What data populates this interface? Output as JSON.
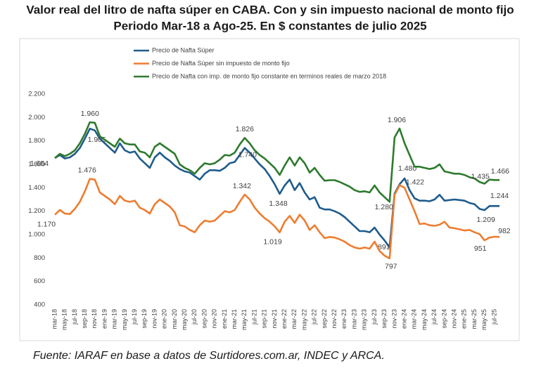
{
  "chart_data": {
    "type": "line",
    "title": "Valor real del litro de nafta súper en CABA. Con y sin impuesto nacional de monto fijo",
    "subtitle": "Periodo Mar-18 a Ago-25. En $ constantes de julio 2025",
    "source": "Fuente: IARAF en base a datos de Surtidores.com.ar, INDEC y ARCA.",
    "categories": [
      "mar-18",
      null,
      "may-18",
      null,
      "jul-18",
      null,
      "sep-18",
      null,
      "nov-18",
      null,
      "ene-19",
      null,
      "mar-19",
      null,
      "may-19",
      null,
      "jul-19",
      null,
      "sep-19",
      null,
      "nov-19",
      null,
      "ene-20",
      null,
      "mar-20",
      null,
      "may-20",
      null,
      "jul-20",
      null,
      "sep-20",
      null,
      "nov-20",
      null,
      "ene-21",
      null,
      "mar-21",
      null,
      "may-21",
      null,
      "jul-21",
      null,
      "sep-21",
      null,
      "nov-21",
      null,
      "ene-22",
      null,
      "mar-22",
      null,
      "may-22",
      null,
      "jul-22",
      null,
      "sep-22",
      null,
      "nov-22",
      null,
      "ene-23",
      null,
      "mar-23",
      null,
      "may-23",
      null,
      "jul-23",
      null,
      "sep-23",
      null,
      "nov-23",
      null,
      "ene-24",
      null,
      "mar-24",
      null,
      "may-24",
      null,
      "jul-24",
      null,
      "sep-24",
      null,
      "nov-24",
      null,
      "ene-25",
      null,
      "mar-25",
      null,
      "may-25",
      null,
      "jul-25",
      null
    ],
    "ylim": [
      400,
      2200
    ],
    "yticks": [
      400,
      600,
      800,
      {
        "value": 1000,
        "label": "1.000"
      },
      {
        "value": 1200,
        "label": "1.200"
      },
      {
        "value": 1400,
        "label": "1.400"
      },
      {
        "value": 1600,
        "label": "1.600"
      },
      {
        "value": 1800,
        "label": "1.800"
      },
      {
        "value": 2000,
        "label": "2.000"
      },
      {
        "value": 2200,
        "label": "2.200"
      }
    ],
    "grid": false,
    "series": [
      {
        "name": "Precio de Nafta Súper",
        "color": "#1f5c8b",
        "values": [
          1654,
          1680,
          1650,
          1660,
          1690,
          1740,
          1820,
          1905,
          1890,
          1820,
          1780,
          1740,
          1700,
          1780,
          1720,
          1700,
          1710,
          1650,
          1610,
          1570,
          1660,
          1700,
          1660,
          1630,
          1590,
          1560,
          1540,
          1530,
          1500,
          1470,
          1520,
          1550,
          1550,
          1545,
          1570,
          1610,
          1620,
          1680,
          1740,
          1700,
          1650,
          1600,
          1560,
          1500,
          1430,
          1348,
          1420,
          1470,
          1380,
          1440,
          1360,
          1300,
          1320,
          1230,
          1215,
          1215,
          1200,
          1180,
          1150,
          1110,
          1070,
          1030,
          1030,
          1020,
          1060,
          1000,
          950,
          891,
          1350,
          1430,
          1480,
          1380,
          1310,
          1290,
          1290,
          1285,
          1300,
          1340,
          1290,
          1295,
          1300,
          1295,
          1290,
          1270,
          1260,
          1220,
          1209,
          1244,
          1244,
          1244
        ],
        "value_labels": [
          "1.654",
          null,
          null,
          null,
          null,
          null,
          null,
          "1.905",
          null,
          null,
          null,
          null,
          null,
          null,
          null,
          null,
          null,
          null,
          null,
          null,
          null,
          null,
          null,
          null,
          null,
          null,
          null,
          null,
          null,
          null,
          null,
          null,
          null,
          null,
          null,
          null,
          null,
          null,
          "1.740",
          null,
          null,
          null,
          null,
          null,
          null,
          "1.348",
          null,
          null,
          null,
          null,
          null,
          null,
          null,
          null,
          null,
          null,
          null,
          null,
          null,
          null,
          null,
          null,
          null,
          null,
          null,
          null,
          null,
          "891",
          null,
          null,
          "1.480",
          null,
          null,
          null,
          null,
          null,
          null,
          null,
          null,
          null,
          null,
          null,
          null,
          null,
          null,
          null,
          "1.209",
          null,
          null,
          "1.244"
        ]
      },
      {
        "name": "Precio de Nafta Súper sin impuesto de monto fijo",
        "color": "#ed7d31",
        "values": [
          1170,
          1210,
          1180,
          1175,
          1220,
          1280,
          1370,
          1476,
          1470,
          1360,
          1330,
          1300,
          1260,
          1330,
          1290,
          1280,
          1290,
          1230,
          1210,
          1180,
          1260,
          1300,
          1270,
          1240,
          1190,
          1080,
          1070,
          1040,
          1020,
          1080,
          1120,
          1110,
          1120,
          1160,
          1200,
          1190,
          1210,
          1280,
          1342,
          1300,
          1230,
          1180,
          1140,
          1110,
          1070,
          1019,
          1110,
          1160,
          1100,
          1170,
          1120,
          1040,
          1080,
          1020,
          970,
          980,
          975,
          960,
          940,
          910,
          890,
          880,
          890,
          880,
          940,
          860,
          820,
          797,
          1340,
          1422,
          1400,
          1300,
          1200,
          1090,
          1095,
          1080,
          1075,
          1085,
          1110,
          1060,
          1055,
          1045,
          1035,
          1040,
          1020,
          1005,
          951,
          975,
          982,
          980
        ],
        "value_labels": [
          "1.170",
          null,
          null,
          null,
          null,
          null,
          null,
          "1.476",
          null,
          null,
          null,
          null,
          null,
          null,
          null,
          null,
          null,
          null,
          null,
          null,
          null,
          null,
          null,
          null,
          null,
          null,
          null,
          null,
          null,
          null,
          null,
          null,
          null,
          null,
          null,
          null,
          null,
          null,
          "1.342",
          null,
          null,
          null,
          null,
          null,
          null,
          "1.019",
          null,
          null,
          null,
          null,
          null,
          null,
          null,
          null,
          null,
          null,
          null,
          null,
          null,
          null,
          null,
          null,
          null,
          null,
          null,
          null,
          null,
          "797",
          null,
          "1.422",
          null,
          null,
          null,
          null,
          null,
          null,
          null,
          null,
          null,
          null,
          null,
          null,
          null,
          null,
          null,
          null,
          "951",
          null,
          "982",
          null
        ]
      },
      {
        "name": "Precio de Nafta con imp. de monto fijo constante en terminos reales de marzo 2018",
        "color": "#2e7a2e",
        "values": [
          1654,
          1690,
          1670,
          1690,
          1720,
          1780,
          1860,
          1960,
          1955,
          1840,
          1810,
          1780,
          1750,
          1820,
          1780,
          1770,
          1770,
          1710,
          1700,
          1660,
          1750,
          1780,
          1750,
          1720,
          1690,
          1600,
          1570,
          1550,
          1520,
          1570,
          1610,
          1600,
          1610,
          1640,
          1680,
          1675,
          1700,
          1770,
          1826,
          1780,
          1720,
          1680,
          1650,
          1610,
          1570,
          1510,
          1590,
          1660,
          1590,
          1660,
          1610,
          1530,
          1570,
          1510,
          1460,
          1465,
          1465,
          1450,
          1430,
          1410,
          1380,
          1365,
          1370,
          1360,
          1420,
          1360,
          1320,
          1280,
          1830,
          1906,
          1780,
          1680,
          1580,
          1580,
          1570,
          1560,
          1570,
          1600,
          1540,
          1530,
          1520,
          1520,
          1510,
          1490,
          1480,
          1450,
          1435,
          1470,
          1466,
          1466
        ],
        "value_labels": [
          null,
          null,
          null,
          null,
          null,
          null,
          null,
          "1.960",
          null,
          null,
          null,
          null,
          null,
          null,
          null,
          null,
          null,
          null,
          null,
          null,
          null,
          null,
          null,
          null,
          null,
          null,
          null,
          null,
          null,
          null,
          null,
          null,
          null,
          null,
          null,
          null,
          null,
          null,
          "1.826",
          null,
          null,
          null,
          null,
          null,
          null,
          null,
          null,
          null,
          null,
          null,
          null,
          null,
          null,
          null,
          null,
          null,
          null,
          null,
          null,
          null,
          null,
          null,
          null,
          null,
          null,
          null,
          null,
          "1.280",
          null,
          "1.906",
          null,
          null,
          null,
          null,
          null,
          null,
          null,
          null,
          null,
          null,
          null,
          null,
          null,
          null,
          null,
          null,
          "1.435",
          null,
          "1.466",
          null
        ]
      }
    ]
  }
}
